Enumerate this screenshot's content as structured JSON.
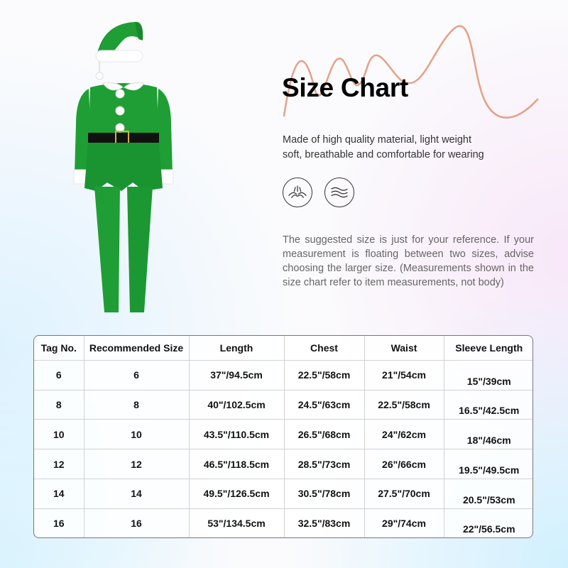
{
  "title": "Size Chart",
  "description": [
    "Made of high quality material, light weight",
    "soft, breathable and comfortable for wearing"
  ],
  "features": [
    {
      "icon": "breathable-fabric-icon"
    },
    {
      "icon": "soft-wave-icon"
    }
  ],
  "note": "The suggested size is just for your reference. If your measurement is floating between two sizes, advise choosing the larger size. (Measurements shown in the size chart refer to item measurements, not body)",
  "colors": {
    "costume_green": "#1e9e34",
    "squiggle": "#e5a184",
    "trim_white": "#ffffff",
    "belt_black": "#111111"
  },
  "size_table": {
    "headers": [
      "Tag No.",
      "Recommended Size",
      "Length",
      "Chest",
      "Waist",
      "Sleeve Length"
    ],
    "rows": [
      [
        "6",
        "6",
        "37\"/94.5cm",
        "22.5\"/58cm",
        "21\"/54cm",
        "15\"/39cm"
      ],
      [
        "8",
        "8",
        "40\"/102.5cm",
        "24.5\"/63cm",
        "22.5\"/58cm",
        "16.5\"/42.5cm"
      ],
      [
        "10",
        "10",
        "43.5\"/110.5cm",
        "26.5\"/68cm",
        "24\"/62cm",
        "18\"/46cm"
      ],
      [
        "12",
        "12",
        "46.5\"/118.5cm",
        "28.5\"/73cm",
        "26\"/66cm",
        "19.5\"/49.5cm"
      ],
      [
        "14",
        "14",
        "49.5\"/126.5cm",
        "30.5\"/78cm",
        "27.5\"/70cm",
        "20.5\"/53cm"
      ],
      [
        "16",
        "16",
        "53\"/134.5cm",
        "32.5\"/83cm",
        "29\"/74cm",
        "22\"/56.5cm"
      ]
    ]
  }
}
